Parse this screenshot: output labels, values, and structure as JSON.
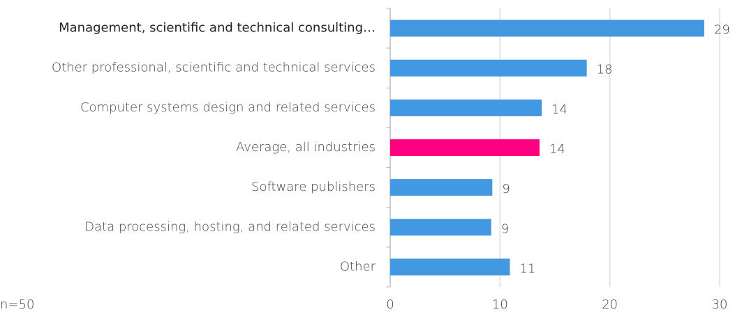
{
  "chart_data": {
    "type": "barh",
    "categories": [
      "Management, scientific and technical consulting…",
      "Other professional, scientific and technical services",
      "Computer systems design and related services",
      "Average, all industries",
      "Software publishers",
      "Data processing, hosting, and related services",
      "Other"
    ],
    "values": [
      28.6,
      17.9,
      13.8,
      13.6,
      9.3,
      9.2,
      10.9
    ],
    "value_labels": [
      "29",
      "18",
      "14",
      "14",
      "9",
      "9",
      "11"
    ],
    "colors": [
      "#4299e1",
      "#4299e1",
      "#4299e1",
      "#ff0080",
      "#4299e1",
      "#4299e1",
      "#4299e1"
    ],
    "xlim": [
      0,
      30
    ],
    "xticks": [
      0,
      10,
      20,
      30
    ],
    "grid": true,
    "annotation": "n=50"
  }
}
